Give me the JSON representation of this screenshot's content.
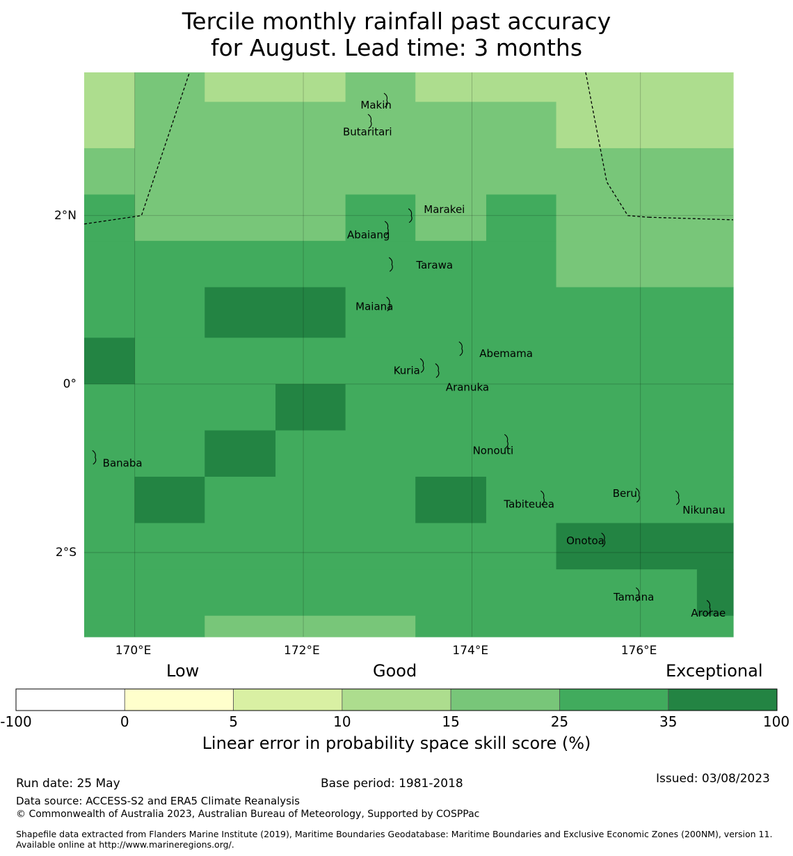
{
  "title": {
    "line1": "Tercile monthly rainfall past accuracy",
    "line2": "for August. Lead time: 3 months"
  },
  "map": {
    "lon_range": [
      169.4,
      177.1
    ],
    "lat_range": [
      -3.0,
      3.7
    ],
    "grid_lon": [
      170,
      172,
      174,
      176
    ],
    "grid_lat": [
      2,
      0,
      -2
    ],
    "lon_labels": [
      "170°E",
      "172°E",
      "174°E",
      "176°E"
    ],
    "lat_labels": [
      "2°N",
      "0°",
      "2°S"
    ],
    "cells": [
      {
        "lon0": 169.4,
        "lon1": 170.0,
        "lat0": 2.8,
        "lat1": 3.7,
        "level": "10-15"
      },
      {
        "lon0": 170.0,
        "lon1": 170.83,
        "lat0": 3.35,
        "lat1": 3.7,
        "level": "15-25"
      },
      {
        "lon0": 170.83,
        "lon1": 172.5,
        "lat0": 3.35,
        "lat1": 3.7,
        "level": "10-15"
      },
      {
        "lon0": 172.5,
        "lon1": 173.33,
        "lat0": 3.35,
        "lat1": 3.7,
        "level": "15-25"
      },
      {
        "lon0": 173.33,
        "lon1": 177.1,
        "lat0": 3.35,
        "lat1": 3.7,
        "level": "10-15"
      },
      {
        "lon0": 170.0,
        "lon1": 175.0,
        "lat0": 2.8,
        "lat1": 3.35,
        "level": "15-25"
      },
      {
        "lon0": 175.0,
        "lon1": 177.1,
        "lat0": 2.8,
        "lat1": 3.35,
        "level": "10-15"
      },
      {
        "lon0": 169.4,
        "lon1": 177.1,
        "lat0": 2.25,
        "lat1": 2.8,
        "level": "15-25"
      },
      {
        "lon0": 169.4,
        "lon1": 170.0,
        "lat0": 1.7,
        "lat1": 2.25,
        "level": "25-35"
      },
      {
        "lon0": 170.0,
        "lon1": 172.5,
        "lat0": 1.7,
        "lat1": 2.25,
        "level": "15-25"
      },
      {
        "lon0": 172.5,
        "lon1": 173.33,
        "lat0": 1.7,
        "lat1": 2.25,
        "level": "25-35"
      },
      {
        "lon0": 173.33,
        "lon1": 174.17,
        "lat0": 1.7,
        "lat1": 2.25,
        "level": "15-25"
      },
      {
        "lon0": 174.17,
        "lon1": 175.0,
        "lat0": 1.7,
        "lat1": 2.25,
        "level": "25-35"
      },
      {
        "lon0": 175.0,
        "lon1": 177.1,
        "lat0": 1.7,
        "lat1": 2.25,
        "level": "15-25"
      },
      {
        "lon0": 169.4,
        "lon1": 175.0,
        "lat0": 1.15,
        "lat1": 1.7,
        "level": "25-35"
      },
      {
        "lon0": 175.0,
        "lon1": 177.1,
        "lat0": 1.15,
        "lat1": 1.7,
        "level": "15-25"
      },
      {
        "lon0": 169.4,
        "lon1": 170.83,
        "lat0": 0.55,
        "lat1": 1.15,
        "level": "25-35"
      },
      {
        "lon0": 170.83,
        "lon1": 172.5,
        "lat0": 0.55,
        "lat1": 1.15,
        "level": "35-100"
      },
      {
        "lon0": 172.5,
        "lon1": 177.1,
        "lat0": 0.55,
        "lat1": 1.15,
        "level": "25-35"
      },
      {
        "lon0": 169.4,
        "lon1": 170.0,
        "lat0": 0.0,
        "lat1": 0.55,
        "level": "35-100"
      },
      {
        "lon0": 170.0,
        "lon1": 177.1,
        "lat0": 0.0,
        "lat1": 0.55,
        "level": "25-35"
      },
      {
        "lon0": 169.4,
        "lon1": 171.67,
        "lat0": -0.55,
        "lat1": 0.0,
        "level": "25-35"
      },
      {
        "lon0": 171.67,
        "lon1": 172.5,
        "lat0": -0.55,
        "lat1": 0.0,
        "level": "35-100"
      },
      {
        "lon0": 172.5,
        "lon1": 177.1,
        "lat0": -0.55,
        "lat1": 0.0,
        "level": "25-35"
      },
      {
        "lon0": 169.4,
        "lon1": 170.83,
        "lat0": -1.1,
        "lat1": -0.55,
        "level": "25-35"
      },
      {
        "lon0": 170.83,
        "lon1": 171.67,
        "lat0": -1.1,
        "lat1": -0.55,
        "level": "35-100"
      },
      {
        "lon0": 171.67,
        "lon1": 177.1,
        "lat0": -1.1,
        "lat1": -0.55,
        "level": "25-35"
      },
      {
        "lon0": 169.4,
        "lon1": 170.0,
        "lat0": -1.65,
        "lat1": -1.1,
        "level": "25-35"
      },
      {
        "lon0": 170.0,
        "lon1": 170.83,
        "lat0": -1.65,
        "lat1": -1.1,
        "level": "35-100"
      },
      {
        "lon0": 170.83,
        "lon1": 173.33,
        "lat0": -1.65,
        "lat1": -1.1,
        "level": "25-35"
      },
      {
        "lon0": 173.33,
        "lon1": 174.17,
        "lat0": -1.65,
        "lat1": -1.1,
        "level": "35-100"
      },
      {
        "lon0": 174.17,
        "lon1": 177.1,
        "lat0": -1.65,
        "lat1": -1.1,
        "level": "25-35"
      },
      {
        "lon0": 169.4,
        "lon1": 175.0,
        "lat0": -2.2,
        "lat1": -1.65,
        "level": "25-35"
      },
      {
        "lon0": 175.0,
        "lon1": 177.1,
        "lat0": -2.2,
        "lat1": -1.65,
        "level": "35-100"
      },
      {
        "lon0": 169.4,
        "lon1": 176.67,
        "lat0": -2.75,
        "lat1": -2.2,
        "level": "25-35"
      },
      {
        "lon0": 176.67,
        "lon1": 177.1,
        "lat0": -2.75,
        "lat1": -2.2,
        "level": "35-100"
      },
      {
        "lon0": 169.4,
        "lon1": 170.83,
        "lat0": -3.0,
        "lat1": -2.75,
        "level": "25-35"
      },
      {
        "lon0": 170.83,
        "lon1": 173.33,
        "lat0": -3.0,
        "lat1": -2.75,
        "level": "15-25"
      },
      {
        "lon0": 173.33,
        "lon1": 177.1,
        "lat0": -3.0,
        "lat1": -2.75,
        "level": "25-35"
      }
    ],
    "eez_lines": [
      [
        [
          169.4,
          1.9
        ],
        [
          170.08,
          2.0
        ],
        [
          170.65,
          3.7
        ]
      ],
      [
        [
          175.35,
          3.7
        ],
        [
          175.6,
          2.4
        ],
        [
          175.85,
          2.0
        ],
        [
          176.1,
          1.98
        ]
      ],
      [
        [
          176.1,
          1.98
        ],
        [
          177.1,
          1.95
        ]
      ]
    ],
    "islands": [
      {
        "name": "Makin",
        "lon": 172.99,
        "lat": 3.37,
        "label_lon": 172.68,
        "label_lat": 3.32
      },
      {
        "name": "Butaritari",
        "lon": 172.8,
        "lat": 3.12,
        "label_lon": 172.47,
        "label_lat": 3.0
      },
      {
        "name": "Marakei",
        "lon": 173.28,
        "lat": 2.0,
        "label_lon": 173.43,
        "label_lat": 2.08
      },
      {
        "name": "Abaiang",
        "lon": 173.0,
        "lat": 1.85,
        "label_lon": 172.52,
        "label_lat": 1.78
      },
      {
        "name": "Tarawa",
        "lon": 173.05,
        "lat": 1.42,
        "label_lon": 173.34,
        "label_lat": 1.42
      },
      {
        "name": "Maiana",
        "lon": 173.02,
        "lat": 0.95,
        "label_lon": 172.62,
        "label_lat": 0.93
      },
      {
        "name": "Abemama",
        "lon": 173.88,
        "lat": 0.42,
        "label_lon": 174.09,
        "label_lat": 0.37
      },
      {
        "name": "Kuria",
        "lon": 173.42,
        "lat": 0.22,
        "label_lon": 173.07,
        "label_lat": 0.17
      },
      {
        "name": "Aranuka",
        "lon": 173.6,
        "lat": 0.16,
        "label_lon": 173.69,
        "label_lat": -0.03
      },
      {
        "name": "Nonouti",
        "lon": 174.42,
        "lat": -0.68,
        "label_lon": 174.01,
        "label_lat": -0.78
      },
      {
        "name": "Tabiteuea",
        "lon": 174.85,
        "lat": -1.35,
        "label_lon": 174.38,
        "label_lat": -1.42
      },
      {
        "name": "Beru",
        "lon": 175.98,
        "lat": -1.32,
        "label_lon": 175.67,
        "label_lat": -1.29
      },
      {
        "name": "Nikunau",
        "lon": 176.45,
        "lat": -1.35,
        "label_lon": 176.5,
        "label_lat": -1.49
      },
      {
        "name": "Onotoa",
        "lon": 175.57,
        "lat": -1.85,
        "label_lon": 175.12,
        "label_lat": -1.85
      },
      {
        "name": "Tamana",
        "lon": 175.98,
        "lat": -2.5,
        "label_lon": 175.68,
        "label_lat": -2.52
      },
      {
        "name": "Arorae",
        "lon": 176.82,
        "lat": -2.65,
        "label_lon": 176.6,
        "label_lat": -2.71
      },
      {
        "name": "Banaba",
        "lon": 169.53,
        "lat": -0.87,
        "label_lon": 169.62,
        "label_lat": -0.93
      }
    ]
  },
  "legend": {
    "low": "Low",
    "good": "Good",
    "exceptional": "Exceptional",
    "bins": [
      {
        "from": -100,
        "to": 0,
        "color": "#ffffff"
      },
      {
        "from": 0,
        "to": 5,
        "color": "#ffffcc"
      },
      {
        "from": 5,
        "to": 10,
        "color": "#d9f0a3"
      },
      {
        "from": 10,
        "to": 15,
        "color": "#addd8e"
      },
      {
        "from": 15,
        "to": 25,
        "color": "#78c679"
      },
      {
        "from": 25,
        "to": 35,
        "color": "#41ab5d"
      },
      {
        "from": 35,
        "to": 100,
        "color": "#238443"
      }
    ],
    "tick_labels": [
      "-100",
      "0",
      "5",
      "10",
      "15",
      "25",
      "35",
      "100"
    ],
    "label": "Linear error in probability space skill score (%)"
  },
  "level_colors": {
    "10-15": "#addd8e",
    "15-25": "#78c679",
    "25-35": "#41ab5d",
    "35-100": "#238443"
  },
  "footer": {
    "run_date": "Run date: 25 May",
    "base_period": "Base period: 1981-2018",
    "issued": "Issued: 03/08/2023",
    "data_source": "Data source: ACCESS-S2 and ERA5 Climate Reanalysis",
    "copyright": "© Commonwealth of Australia 2023, Australian Bureau of Meteorology, Supported by COSPPac",
    "shapefile": "Shapefile data extracted from Flanders Marine Institute (2019), Maritime Boundaries Geodatabase: Maritime Boundaries and Exclusive Economic Zones (200NM), version 11. Available online at http://www.marineregions.org/."
  }
}
